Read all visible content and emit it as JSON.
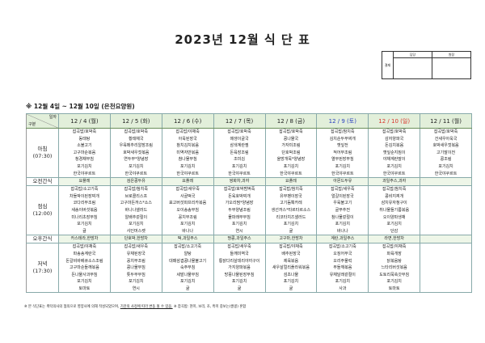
{
  "title": "2023년 12월 식 단 표",
  "approval": {
    "label": "결재",
    "col1": "담당",
    "col2": "원장"
  },
  "period": "※ 12월 4일 ~ 12월 10일 (은천요양원)",
  "corner": {
    "top": "일자",
    "bottom": "구분"
  },
  "colors": {
    "header_bg": "#e2efda",
    "saturday": "#2a3fc0",
    "sunday": "#d9342b"
  },
  "days": [
    {
      "label": "12 / 4 (월)",
      "type": "weekday"
    },
    {
      "label": "12 / 5 (화)",
      "type": "weekday"
    },
    {
      "label": "12 / 6 (수)",
      "type": "weekday"
    },
    {
      "label": "12 / 7 (목)",
      "type": "weekday"
    },
    {
      "label": "12 / 8 (금)",
      "type": "weekday"
    },
    {
      "label": "12 / 9 (토)",
      "type": "saturday"
    },
    {
      "label": "12 / 10 (일)",
      "type": "sunday"
    },
    {
      "label": "12 / 11 (월)",
      "type": "weekday"
    }
  ],
  "meals": [
    {
      "label": "아침",
      "time": "(07:30)",
      "kind": "meal",
      "cells": [
        [
          "잡곡밥/호박죽",
          "동태탕",
          "소불고기",
          "고구마순볶음",
          "청경채무침",
          "포기김치",
          "한국야쿠르트"
        ],
        [
          "잡곡밥/호박죽",
          "황태채국",
          "우육메추리알장조림",
          "호박새우젓볶음",
          "연두부*양념장",
          "포기김치",
          "한국야쿠르트"
        ],
        [
          "잡곡밥/야채죽",
          "아욱된장국",
          "참치김치볶음",
          "미역자반볶음",
          "참나물무침",
          "포기김치",
          "한국야쿠르트"
        ],
        [
          "잡곡밥/호박죽",
          "매생이굴국",
          "삼색계란찜",
          "돈육장조림",
          "조미김",
          "포기김치",
          "한국야쿠르트"
        ],
        [
          "잡곡밥/호박죽",
          "콩나물국",
          "가자미조림",
          "단호박조림",
          "올방개묵*양념장",
          "포기김치",
          "한국야쿠르트"
        ],
        [
          "잡곡밥/참치죽",
          "김치순두부찌개",
          "깻잎전",
          "적어무조림",
          "열무된장무침",
          "포기김치",
          "한국야쿠르트"
        ],
        [
          "잡곡밥/호박죽",
          "감자양파국",
          "돈김치볶음",
          "깻잎순지짐이",
          "야채계란말이",
          "포기김치",
          "한국야쿠르트"
        ],
        [
          "잡곡밥/호박죽",
          "건새우아욱국",
          "호박새우젓볶음",
          "고기말이전",
          "콩조림",
          "포기김치",
          "한국야쿠르트"
        ]
      ]
    },
    {
      "label": "오전간식",
      "time": "",
      "kind": "snack",
      "cells": [
        [
          "요플레"
        ],
        [
          "검은콩두유"
        ],
        [
          "요플레"
        ],
        [
          "쌍화차,과자"
        ],
        [
          "요플레"
        ],
        [
          "아몬드두유"
        ],
        [
          "과일주스,과자"
        ],
        [
          ""
        ]
      ]
    },
    {
      "label": "점심",
      "time": "(12:00)",
      "kind": "meal",
      "cells": [
        [
          "잡곡밥/소고기죽",
          "차돌박이된장찌개",
          "코다리무조림",
          "새송이버섯볶음",
          "미나리초장무침",
          "포기김치",
          "귤"
        ],
        [
          "잡곡밥/참치죽",
          "브로콜리스프",
          "고구마돈까스*소스",
          "바나나샐러드",
          "알배추겉절이",
          "포기김치",
          "샤인머스켓"
        ],
        [
          "잡곡밥/새우죽",
          "사골떡국",
          "표고버섯파프리카볶음",
          "오이송송무침",
          "꽁치무조림",
          "포기김치",
          "바나나"
        ],
        [
          "잡곡밥/호박범벅죽",
          "돈육호박찌개",
          "가오리찜*양념장",
          "두부양념조림",
          "물파래무무침",
          "포기김치",
          "연시"
        ],
        [
          "잡곡밥/참치죽",
          "유부팽이장국",
          "고기듬뿍카레",
          "생선까스*타르타르소스",
          "리코타치즈샐러드",
          "포기김치",
          "귤"
        ],
        [
          "잡곡밥/새우죽",
          "얼갈이된장국",
          "우육불고기",
          "굴부추전",
          "참나물겉절이",
          "포기김치",
          "바나나"
        ],
        [
          "잡곡밥/참치죽",
          "콩비지찌개",
          "삼치유자청구이",
          "취나물들기름볶음",
          "오이양파생채",
          "포기김치",
          "단감"
        ],
        [
          "",
          "",
          "",
          "",
          "",
          "",
          ""
        ]
      ]
    },
    {
      "label": "오후간식",
      "time": "",
      "kind": "snack",
      "cells": [
        [
          "카스테라,한방차"
        ],
        [
          "단호박,한방차"
        ],
        [
          "떡,과일주스"
        ],
        [
          "땅콩,과일주스"
        ],
        [
          "고구마,한방차"
        ],
        [
          "계란,과일주스"
        ],
        [
          "라면,한방차"
        ],
        [
          ""
        ]
      ]
    },
    {
      "label": "저녁",
      "time": "(17:30)",
      "kind": "meal",
      "cells": [
        [
          "잡곡밥/야채죽",
          "파송송계란국",
          "돈갈비바베큐소스조림",
          "고구마순들깨볶음",
          "돈나물사과무침",
          "포기김치",
          "토마토"
        ],
        [
          "잡곡밥/새우죽",
          "유채된장국",
          "꽁치무조림",
          "콩나물무침",
          "톳두부무침",
          "포기김치",
          "연시"
        ],
        [
          "잡곡밥/소고기죽",
          "알탕",
          "대패삼겹콩나물불고기",
          "숙주무침",
          "세발나물무침",
          "포기김치",
          "귤"
        ],
        [
          "잡곡밥/새우죽",
          "들깨미역국",
          "통닭다리살데리야끼구이",
          "가지양파볶음",
          "방풍나물된장무침",
          "포기김치",
          "귤"
        ],
        [
          "잡곡밥/야채죽",
          "배추된장국",
          "제육볶음",
          "새우살컬리플라워볶음",
          "섬초나물",
          "포기김치",
          "귤"
        ],
        [
          "잡곡밥/소고기죽",
          "오징어무국",
          "오리주물럭",
          "무들깨볶음",
          "유채달래겉절이",
          "포기김치",
          "사과"
        ],
        [
          "잡곡밥/야채죽",
          "파육개장",
          "닭볶음탕",
          "느타리버섯볶음",
          "도토리묵쑥갓무침",
          "포기김치",
          "토마토"
        ],
        [
          "",
          "",
          "",
          "",
          "",
          "",
          ""
        ]
      ]
    }
  ],
  "note": {
    "part1": "※ 본 식단표는 촉탁의사의 협의으로 영양사에 의해 작성되었으며, ",
    "part2": "기관의 사정에 따라 변동 될 수 있음.",
    "part3": " ※ 잡곡밥: 현미, 보리, 조, 흑미 중보는(쌀콩) 혼합"
  }
}
